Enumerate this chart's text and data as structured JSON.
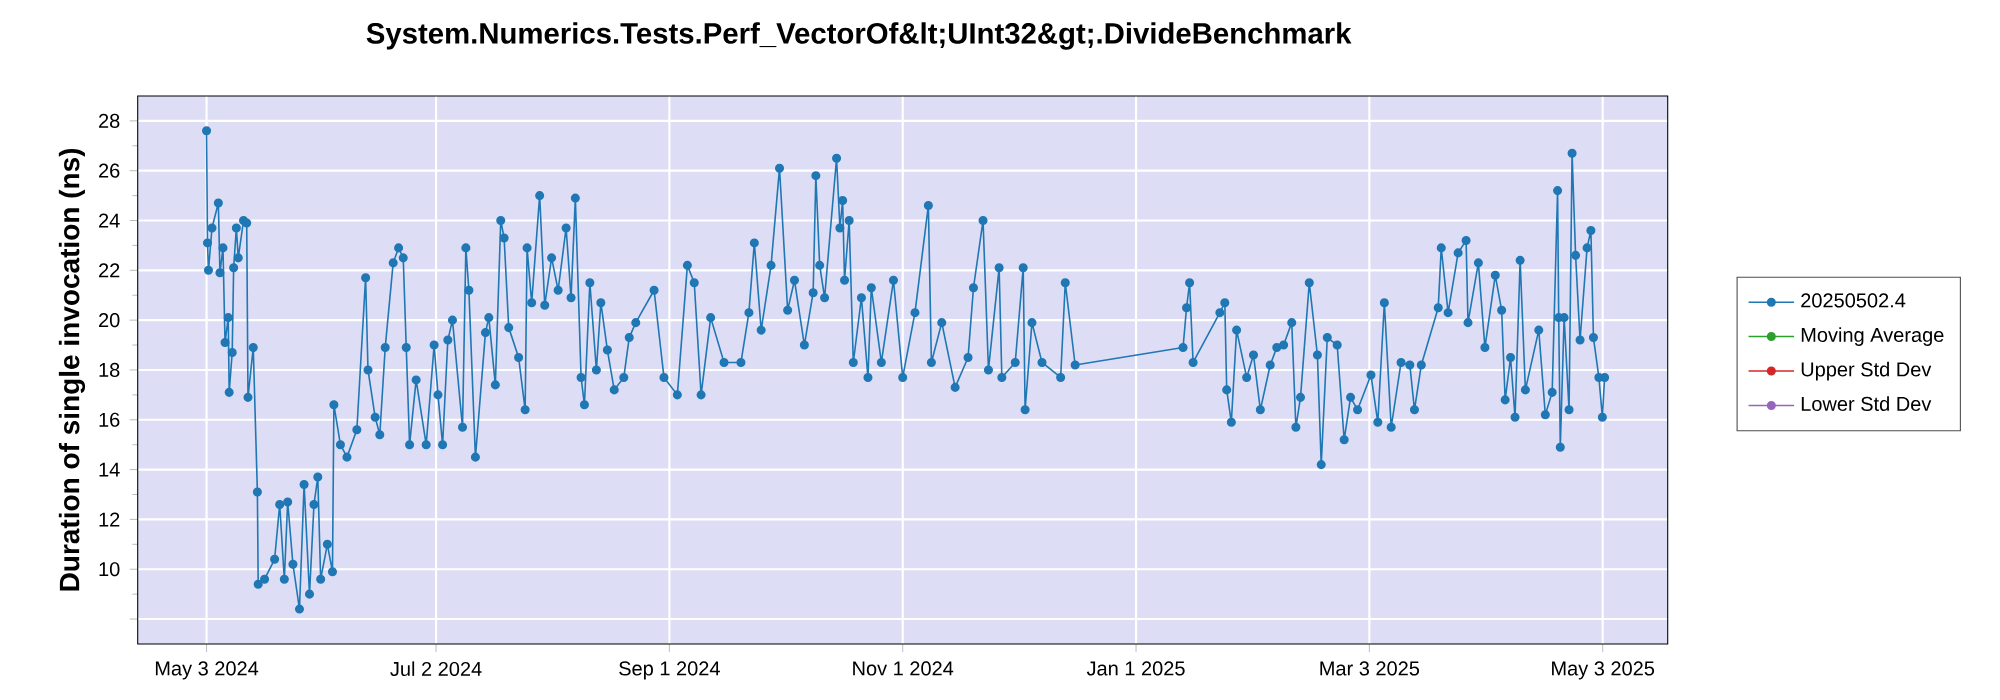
{
  "chart_data": {
    "type": "line",
    "title": "System.Numerics.Tests.Perf_VectorOf&lt;UInt32&gt;.DivideBenchmark",
    "ylabel": "Duration of single invocation (ns)",
    "xlim": [
      "2024-04-15",
      "2025-05-20"
    ],
    "xticks": [
      {
        "value": "2024-05-03",
        "label": "May 3 2024"
      },
      {
        "value": "2024-07-02",
        "label": "Jul 2 2024"
      },
      {
        "value": "2024-09-01",
        "label": "Sep 1 2024"
      },
      {
        "value": "2024-11-01",
        "label": "Nov 1 2024"
      },
      {
        "value": "2025-01-01",
        "label": "Jan 1 2025"
      },
      {
        "value": "2025-03-03",
        "label": "Mar 3 2025"
      },
      {
        "value": "2025-05-03",
        "label": "May 3 2025"
      }
    ],
    "ylim": [
      7,
      29
    ],
    "yticks": [
      {
        "value": 8,
        "label": null
      },
      10,
      12,
      14,
      16,
      18,
      20,
      22,
      24,
      26,
      28
    ],
    "grid": true,
    "legend": "right",
    "marker": "circle",
    "line_style": "solid",
    "series": [
      {
        "name": "20250502.4",
        "color": "#1f77b4",
        "x": [
          "2024-05-03T00:00",
          "2024-05-03T06:00",
          "2024-05-03T12:00",
          "2024-05-04T10:00",
          "2024-05-06T02:00",
          "2024-05-06T12:00",
          "2024-05-07T07:00",
          "2024-05-07T20:00",
          "2024-05-08T16:00",
          "2024-05-08T22:00",
          "2024-05-09T17:00",
          "2024-05-10T02:00",
          "2024-05-10T19:00",
          "2024-05-11T07:00",
          "2024-05-12T16:00",
          "2024-05-13T12:00",
          "2024-05-13T20:00",
          "2024-05-15T05:00",
          "2024-05-16T07:00",
          "2024-05-16T12:00",
          "2024-05-18T04:00",
          "2024-05-20T19:00",
          "2024-05-22T03:00",
          "2024-05-23T08:00",
          "2024-05-24T05:00",
          "2024-05-25T14:00",
          "2024-05-27T07:00",
          "2024-05-28T12:00",
          "2024-05-29T22:00",
          "2024-05-31T02:00",
          "2024-06-01T02:00",
          "2024-06-01T20:00",
          "2024-06-03T14:00",
          "2024-06-04T22:00",
          "2024-06-05T07:00",
          "2024-06-07T00:00",
          "2024-06-08T17:00",
          "2024-06-11T07:00",
          "2024-06-13T14:00",
          "2024-06-14T05:00",
          "2024-06-16T02:00",
          "2024-06-17T07:00",
          "2024-06-18T17:00",
          "2024-06-20T19:00",
          "2024-06-22T05:00",
          "2024-06-23T10:00",
          "2024-06-24T05:00",
          "2024-06-25T02:00",
          "2024-06-26T19:00",
          "2024-06-29T10:00",
          "2024-07-01T12:00",
          "2024-07-02T12:00",
          "2024-07-03T17:00",
          "2024-07-05T02:00",
          "2024-07-06T07:00",
          "2024-07-08T22:00",
          "2024-07-09T19:00",
          "2024-07-10T14:00",
          "2024-07-12T07:00",
          "2024-07-14T22:00",
          "2024-07-15T19:00",
          "2024-07-17T12:00",
          "2024-07-18T22:00",
          "2024-07-19T19:00",
          "2024-07-21T00:00",
          "2024-07-23T14:00",
          "2024-07-25T07:00",
          "2024-07-25T19:00",
          "2024-07-27T00:00",
          "2024-07-29T02:00",
          "2024-07-30T10:00",
          "2024-08-01T05:00",
          "2024-08-02T22:00",
          "2024-08-05T00:00",
          "2024-08-06T07:00",
          "2024-08-07T10:00",
          "2024-08-08T22:00",
          "2024-08-09T19:00",
          "2024-08-11T05:00",
          "2024-08-12T22:00",
          "2024-08-14T02:00",
          "2024-08-15T19:00",
          "2024-08-17T14:00",
          "2024-08-20T02:00",
          "2024-08-21T12:00",
          "2024-08-23T05:00",
          "2024-08-28T00:00",
          "2024-08-30T14:00",
          "2024-09-03T02:00",
          "2024-09-05T17:00",
          "2024-09-07T12:00",
          "2024-09-09T07:00",
          "2024-09-11T19:00",
          "2024-09-15T07:00",
          "2024-09-19T17:00",
          "2024-09-21T19:00",
          "2024-09-23T05:00",
          "2024-09-25T00:00",
          "2024-09-27T14:00",
          "2024-09-29T19:00",
          "2024-10-01T22:00",
          "2024-10-03T17:00",
          "2024-10-06T07:00",
          "2024-10-08T14:00",
          "2024-10-09T07:00",
          "2024-10-10T07:00",
          "2024-10-11T14:00",
          "2024-10-14T17:00",
          "2024-10-15T14:00",
          "2024-10-16T07:00",
          "2024-10-16T19:00",
          "2024-10-18T00:00",
          "2024-10-19T02:00",
          "2024-10-21T05:00",
          "2024-10-22T22:00",
          "2024-10-23T19:00",
          "2024-10-26T10:00",
          "2024-10-29T14:00",
          "2024-11-01T00:00",
          "2024-11-04T05:00",
          "2024-11-07T17:00",
          "2024-11-08T12:00",
          "2024-11-11T05:00",
          "2024-11-14T17:00",
          "2024-11-18T02:00",
          "2024-11-19T12:00",
          "2024-11-22T00:00",
          "2024-11-23T10:00",
          "2024-11-26T05:00",
          "2024-11-26T22:00",
          "2024-11-30T10:00",
          "2024-12-02T12:00",
          "2024-12-03T00:00",
          "2024-12-04T19:00",
          "2024-12-07T10:00",
          "2024-12-12T07:00",
          "2024-12-13T12:00",
          "2024-12-16T02:00",
          "2025-01-13T07:00",
          "2025-01-14T05:00",
          "2025-01-15T00:00",
          "2025-01-15T22:00",
          "2025-01-22T22:00",
          "2025-01-24T05:00",
          "2025-01-24T17:00",
          "2025-01-25T22:00",
          "2025-01-27T07:00",
          "2025-01-29T22:00",
          "2025-01-31T17:00",
          "2025-02-02T12:00",
          "2025-02-05T02:00",
          "2025-02-06T19:00",
          "2025-02-08T14:00",
          "2025-02-10T17:00",
          "2025-02-11T19:00",
          "2025-02-13T00:00",
          "2025-02-15T07:00",
          "2025-02-17T10:00",
          "2025-02-18T10:00",
          "2025-02-20T00:00",
          "2025-02-22T14:00",
          "2025-02-24T10:00",
          "2025-02-26T02:00",
          "2025-02-27T22:00",
          "2025-03-03T10:00",
          "2025-03-05T05:00",
          "2025-03-06T22:00",
          "2025-03-08T17:00",
          "2025-03-11T07:00",
          "2025-03-13T14:00",
          "2025-03-14T19:00",
          "2025-03-16T14:00",
          "2025-03-21T00:00",
          "2025-03-21T19:00",
          "2025-03-23T14:00",
          "2025-03-26T05:00",
          "2025-03-28T07:00",
          "2025-03-28T19:00",
          "2025-03-31T12:00",
          "2025-04-02T05:00",
          "2025-04-04T22:00",
          "2025-04-06T14:00",
          "2025-04-07T12:00",
          "2025-04-08T22:00",
          "2025-04-10T02:00",
          "2025-04-11T10:00",
          "2025-04-12T19:00",
          "2025-04-16T07:00",
          "2025-04-18T00:00",
          "2025-04-19T19:00",
          "2025-04-21T05:00",
          "2025-04-21T12:00",
          "2025-04-21T22:00",
          "2025-04-22T22:00",
          "2025-04-24T05:00",
          "2025-04-25T00:00",
          "2025-04-25T22:00",
          "2025-04-27T02:00",
          "2025-04-28T22:00",
          "2025-04-29T22:00",
          "2025-04-30T14:00",
          "2025-05-02T00:00",
          "2025-05-02T22:00",
          "2025-05-03T12:00"
        ],
        "values": [
          27.6,
          23.1,
          22.0,
          23.7,
          24.7,
          21.9,
          22.9,
          19.1,
          20.1,
          17.1,
          18.7,
          22.1,
          23.7,
          22.5,
          24.0,
          23.9,
          16.9,
          18.9,
          13.1,
          9.4,
          9.6,
          10.4,
          12.6,
          9.6,
          12.7,
          10.2,
          8.4,
          13.4,
          9.0,
          12.6,
          13.7,
          9.6,
          11.0,
          9.9,
          16.6,
          15.0,
          14.5,
          15.6,
          21.7,
          18.0,
          16.1,
          15.4,
          18.9,
          22.3,
          22.9,
          22.5,
          18.9,
          15.0,
          17.6,
          15.0,
          19.0,
          17.0,
          15.0,
          19.2,
          20.0,
          15.7,
          22.9,
          21.2,
          14.5,
          19.5,
          20.1,
          17.4,
          24.0,
          23.3,
          19.7,
          18.5,
          16.4,
          22.9,
          20.7,
          25.0,
          20.6,
          22.5,
          21.2,
          23.7,
          20.9,
          24.9,
          17.7,
          16.6,
          21.5,
          18.0,
          20.7,
          18.8,
          17.2,
          17.7,
          19.3,
          19.9,
          21.2,
          17.7,
          17.0,
          22.2,
          21.5,
          17.0,
          20.1,
          18.3,
          18.3,
          20.3,
          23.1,
          19.6,
          22.2,
          26.1,
          20.4,
          21.6,
          19.0,
          21.1,
          25.8,
          22.2,
          20.9,
          26.5,
          23.7,
          24.8,
          21.6,
          24.0,
          18.3,
          20.9,
          17.7,
          21.3,
          18.3,
          21.6,
          17.7,
          20.3,
          24.6,
          18.3,
          19.9,
          17.3,
          18.5,
          21.3,
          24.0,
          18.0,
          22.1,
          17.7,
          18.3,
          22.1,
          16.4,
          19.9,
          18.3,
          17.7,
          21.5,
          18.2,
          18.9,
          20.5,
          21.5,
          18.3,
          20.3,
          20.7,
          17.2,
          15.9,
          19.6,
          17.7,
          18.6,
          16.4,
          18.2,
          18.9,
          19.0,
          19.9,
          15.7,
          16.9,
          21.5,
          18.6,
          14.2,
          19.3,
          19.0,
          15.2,
          16.9,
          16.4,
          17.8,
          15.9,
          20.7,
          15.7,
          18.3,
          18.2,
          16.4,
          18.2,
          20.5,
          22.9,
          20.3,
          22.7,
          23.2,
          19.9,
          22.3,
          18.9,
          21.8,
          20.4,
          16.8,
          18.5,
          16.1,
          22.4,
          17.2,
          19.6,
          16.2,
          17.1,
          25.2,
          20.1,
          14.9,
          20.1,
          16.4,
          26.7,
          22.6,
          19.2,
          22.9,
          23.6,
          19.3,
          17.7,
          16.1,
          17.7
        ]
      },
      {
        "name": "Moving Average",
        "color": "#2ca02c"
      },
      {
        "name": "Upper Std Dev",
        "color": "#d62728"
      },
      {
        "name": "Lower Std Dev",
        "color": "#9467bd"
      }
    ]
  }
}
